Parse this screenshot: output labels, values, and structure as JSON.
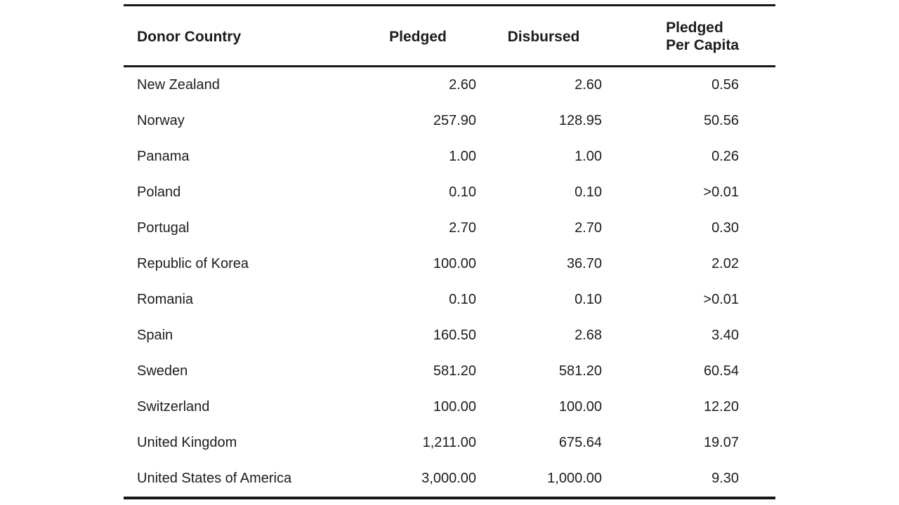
{
  "table": {
    "headers": {
      "donor_country": "Donor Country",
      "pledged": "Pledged",
      "disbursed": "Disbursed",
      "pledged_per_capita": "Pledged\nPer Capita"
    },
    "rows": [
      {
        "country": "New Zealand",
        "pledged": "2.60",
        "disbursed": "2.60",
        "per_capita": "0.56"
      },
      {
        "country": "Norway",
        "pledged": "257.90",
        "disbursed": "128.95",
        "per_capita": "50.56"
      },
      {
        "country": "Panama",
        "pledged": "1.00",
        "disbursed": "1.00",
        "per_capita": "0.26"
      },
      {
        "country": "Poland",
        "pledged": "0.10",
        "disbursed": "0.10",
        "per_capita": ">0.01"
      },
      {
        "country": "Portugal",
        "pledged": "2.70",
        "disbursed": "2.70",
        "per_capita": "0.30"
      },
      {
        "country": "Republic of Korea",
        "pledged": "100.00",
        "disbursed": "36.70",
        "per_capita": "2.02"
      },
      {
        "country": "Romania",
        "pledged": "0.10",
        "disbursed": "0.10",
        "per_capita": ">0.01"
      },
      {
        "country": "Spain",
        "pledged": "160.50",
        "disbursed": "2.68",
        "per_capita": "3.40"
      },
      {
        "country": "Sweden",
        "pledged": "581.20",
        "disbursed": "581.20",
        "per_capita": "60.54"
      },
      {
        "country": "Switzerland",
        "pledged": "100.00",
        "disbursed": "100.00",
        "per_capita": "12.20"
      },
      {
        "country": "United Kingdom",
        "pledged": "1,211.00",
        "disbursed": "675.64",
        "per_capita": "19.07"
      },
      {
        "country": "United States of America",
        "pledged": "3,000.00",
        "disbursed": "1,000.00",
        "per_capita": "9.30"
      }
    ]
  },
  "colors": {
    "text": "#1c1c1c",
    "rule": "#161616",
    "background": "#ffffff"
  }
}
